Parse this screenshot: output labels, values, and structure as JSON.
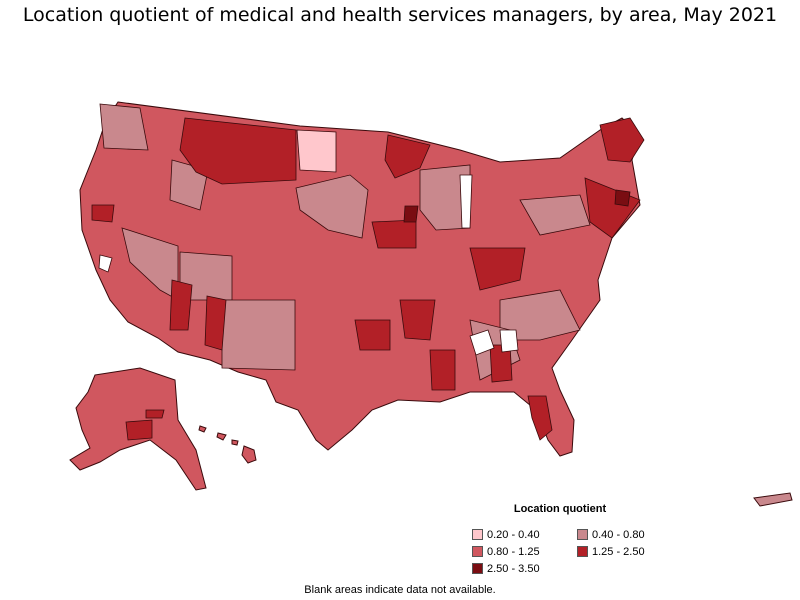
{
  "title": "Location quotient of medical and health services managers, by area, May 2021",
  "legend": {
    "title": "Location quotient",
    "items": [
      {
        "label": "0.20 - 0.40",
        "color": "#ffc7cc"
      },
      {
        "label": "0.40 - 0.80",
        "color": "#c9888d"
      },
      {
        "label": "0.80 - 1.25",
        "color": "#d0575f"
      },
      {
        "label": "1.25 - 2.50",
        "color": "#b22027"
      },
      {
        "label": "2.50 - 3.50",
        "color": "#7a0d12"
      }
    ]
  },
  "note": "Blank areas indicate data not available.",
  "colors": {
    "border": "#3a0a0c",
    "blank": "#ffffff"
  }
}
